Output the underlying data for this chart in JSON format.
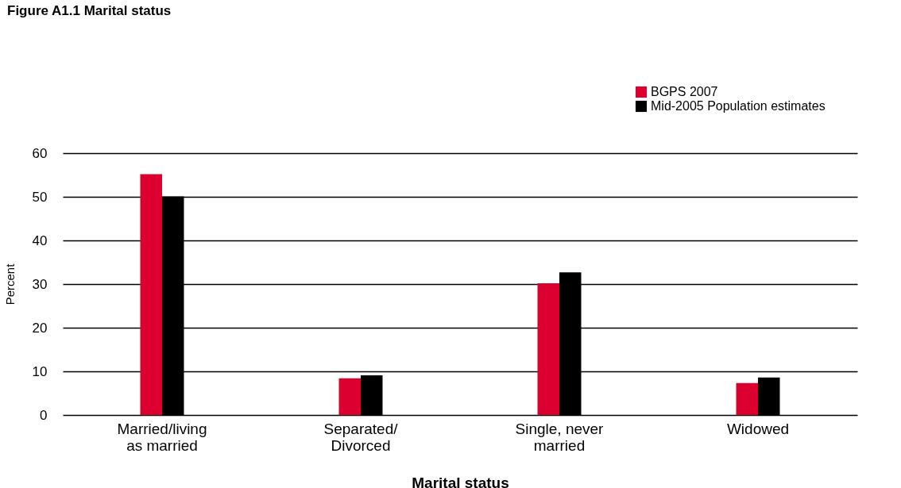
{
  "chart_data": {
    "type": "bar",
    "title": "Figure A1.1 Marital status",
    "categories": [
      "Married/living\nas married",
      "Separated/\nDivorced",
      "Single, never\nmarried",
      "Widowed"
    ],
    "series": [
      {
        "name": "BGPS 2007",
        "color": "#dc0030",
        "values": [
          55.2,
          8.4,
          30.2,
          7.3
        ]
      },
      {
        "name": "Mid-2005 Population estimates",
        "color": "#000000",
        "values": [
          50.1,
          9.1,
          32.7,
          8.6
        ]
      }
    ],
    "xlabel": "Marital status",
    "ylabel": "Percent",
    "ylim": [
      0,
      60
    ],
    "yticks": [
      0,
      10,
      20,
      30,
      40,
      50,
      60
    ],
    "grid": "y",
    "legend": "top right"
  }
}
